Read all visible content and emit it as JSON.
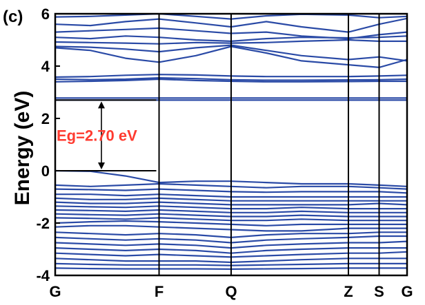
{
  "chart_data": {
    "type": "line",
    "panel_label": "(c)",
    "ylabel": "Energy (eV)",
    "ylim": [
      -4,
      6
    ],
    "yticks": [
      {
        "value": 6,
        "label": "6"
      },
      {
        "value": 4,
        "label": "4"
      },
      {
        "value": 2,
        "label": "2"
      },
      {
        "value": 0,
        "label": "0"
      },
      {
        "value": -2,
        "label": "-2"
      },
      {
        "value": -4,
        "label": "-4"
      }
    ],
    "kpoints": [
      {
        "label": "G",
        "x": 0
      },
      {
        "label": "F",
        "x": 0.2952
      },
      {
        "label": "Q",
        "x": 0.5
      },
      {
        "label": "Z",
        "x": 0.8333
      },
      {
        "label": "S",
        "x": 0.9206
      },
      {
        "label": "G",
        "x": 1
      }
    ],
    "band_gap": {
      "label": "Eg=2.70 eV",
      "vbm": 0,
      "cbm": 2.7
    },
    "colors": {
      "bands": "#2a4aa6",
      "axes": "#000000",
      "gap_label": "#ff3b30"
    },
    "series": [
      {
        "x": [
          0,
          0.1,
          0.2,
          0.2952,
          0.4,
          0.5,
          0.6,
          0.7,
          0.8333,
          0.9206,
          1
        ],
        "values": [
          5.88,
          5.9,
          5.95,
          6.0,
          5.9,
          5.8,
          5.92,
          5.98,
          5.95,
          5.85,
          5.9
        ]
      },
      {
        "x": [
          0,
          0.1,
          0.2,
          0.2952,
          0.4,
          0.5,
          0.6,
          0.7,
          0.8333,
          0.9206,
          1
        ],
        "values": [
          5.6,
          5.55,
          5.7,
          5.8,
          5.65,
          5.5,
          5.7,
          5.5,
          5.3,
          5.6,
          5.82
        ]
      },
      {
        "x": [
          0,
          0.1,
          0.2,
          0.2952,
          0.4,
          0.5,
          0.6,
          0.7,
          0.8333,
          0.9206,
          1
        ],
        "values": [
          5.3,
          5.35,
          5.4,
          5.45,
          5.35,
          5.25,
          5.3,
          5.15,
          5.05,
          5.2,
          5.3
        ]
      },
      {
        "x": [
          0,
          0.1,
          0.2,
          0.2952,
          0.4,
          0.5,
          0.6,
          0.7,
          0.8333,
          0.9206,
          1
        ],
        "values": [
          5.1,
          5.05,
          5.15,
          5.1,
          5.0,
          4.95,
          5.05,
          5.1,
          5.08,
          5.1,
          5.15
        ]
      },
      {
        "x": [
          0,
          0.1,
          0.2,
          0.2952,
          0.4,
          0.5,
          0.6,
          0.7,
          0.8333,
          0.9206,
          1
        ],
        "values": [
          4.92,
          4.9,
          4.88,
          4.85,
          4.9,
          4.88,
          4.9,
          4.95,
          5.0,
          4.95,
          4.95
        ]
      },
      {
        "x": [
          0,
          0.1,
          0.2,
          0.2952,
          0.4,
          0.5,
          0.6,
          0.7,
          0.8333,
          0.9206,
          1
        ],
        "values": [
          4.75,
          4.72,
          4.65,
          4.55,
          4.7,
          4.8,
          4.6,
          4.4,
          4.25,
          4.35,
          4.2
        ]
      },
      {
        "x": [
          0,
          0.1,
          0.2,
          0.2952,
          0.4,
          0.5,
          0.6,
          0.7,
          0.8333,
          0.9206,
          1
        ],
        "values": [
          4.7,
          4.6,
          4.3,
          4.15,
          4.4,
          4.75,
          4.5,
          4.2,
          4.05,
          3.95,
          4.25
        ]
      },
      {
        "x": [
          0,
          0.1,
          0.2,
          0.2952,
          0.4,
          0.5,
          0.6,
          0.7,
          0.8333,
          0.9206,
          1
        ],
        "values": [
          3.58,
          3.6,
          3.65,
          3.68,
          3.66,
          3.62,
          3.6,
          3.6,
          3.6,
          3.62,
          3.65
        ]
      },
      {
        "x": [
          0,
          0.1,
          0.2,
          0.2952,
          0.4,
          0.5,
          0.6,
          0.7,
          0.8333,
          0.9206,
          1
        ],
        "values": [
          3.5,
          3.48,
          3.5,
          3.55,
          3.52,
          3.48,
          3.46,
          3.46,
          3.47,
          3.48,
          3.5
        ]
      },
      {
        "x": [
          0,
          0.1,
          0.2,
          0.2952,
          0.4,
          0.5,
          0.6,
          0.7,
          0.8333,
          0.9206,
          1
        ],
        "values": [
          3.4,
          3.42,
          3.45,
          3.5,
          3.45,
          3.42,
          3.4,
          3.4,
          3.41,
          3.42,
          3.42
        ]
      },
      {
        "x": [
          0,
          0.2952,
          0.5,
          0.8333,
          0.9206,
          1
        ],
        "values": [
          2.78,
          2.78,
          2.78,
          2.78,
          2.78,
          2.78
        ]
      },
      {
        "x": [
          0,
          0.2952,
          0.5,
          0.8333,
          0.9206,
          1
        ],
        "values": [
          2.7,
          2.7,
          2.7,
          2.7,
          2.7,
          2.7
        ]
      },
      {
        "x": [
          0,
          0.1,
          0.2,
          0.2952,
          0.4,
          0.5,
          0.6,
          0.7,
          0.8333,
          0.9206,
          1
        ],
        "values": [
          0.0,
          -0.02,
          -0.2,
          -0.45,
          -0.4,
          -0.4,
          -0.45,
          -0.5,
          -0.5,
          -0.55,
          -0.6
        ]
      },
      {
        "x": [
          0,
          0.1,
          0.2,
          0.2952,
          0.4,
          0.5,
          0.6,
          0.7,
          0.8333,
          0.9206,
          1
        ],
        "values": [
          -0.55,
          -0.6,
          -0.55,
          -0.5,
          -0.55,
          -0.6,
          -0.65,
          -0.6,
          -0.6,
          -0.65,
          -0.7
        ]
      },
      {
        "x": [
          0,
          0.1,
          0.2,
          0.2952,
          0.4,
          0.5,
          0.6,
          0.7,
          0.8333,
          0.9206,
          1
        ],
        "values": [
          -0.7,
          -0.72,
          -0.75,
          -0.7,
          -0.75,
          -0.8,
          -0.82,
          -0.8,
          -0.8,
          -0.8,
          -0.85
        ]
      },
      {
        "x": [
          0,
          0.1,
          0.2,
          0.2952,
          0.4,
          0.5,
          0.6,
          0.7,
          0.8333,
          0.9206,
          1
        ],
        "values": [
          -0.9,
          -0.9,
          -0.95,
          -0.9,
          -0.95,
          -1.0,
          -1.0,
          -1.0,
          -1.0,
          -1.0,
          -1.0
        ]
      },
      {
        "x": [
          0,
          0.1,
          0.2,
          0.2952,
          0.4,
          0.5,
          0.6,
          0.7,
          0.8333,
          0.9206,
          1
        ],
        "values": [
          -1.05,
          -1.1,
          -1.1,
          -1.05,
          -1.1,
          -1.15,
          -1.15,
          -1.15,
          -1.15,
          -1.15,
          -1.15
        ]
      },
      {
        "x": [
          0,
          0.1,
          0.2,
          0.2952,
          0.4,
          0.5,
          0.6,
          0.7,
          0.8333,
          0.9206,
          1
        ],
        "values": [
          -1.2,
          -1.25,
          -1.25,
          -1.2,
          -1.25,
          -1.3,
          -1.3,
          -1.3,
          -1.3,
          -1.25,
          -1.3
        ]
      },
      {
        "x": [
          0,
          0.1,
          0.2,
          0.2952,
          0.4,
          0.5,
          0.6,
          0.7,
          0.8333,
          0.9206,
          1
        ],
        "values": [
          -1.35,
          -1.38,
          -1.4,
          -1.35,
          -1.4,
          -1.45,
          -1.45,
          -1.4,
          -1.45,
          -1.45,
          -1.45
        ]
      },
      {
        "x": [
          0,
          0.1,
          0.2,
          0.2952,
          0.4,
          0.5,
          0.6,
          0.7,
          0.8333,
          0.9206,
          1
        ],
        "values": [
          -1.5,
          -1.52,
          -1.55,
          -1.5,
          -1.55,
          -1.6,
          -1.6,
          -1.55,
          -1.6,
          -1.6,
          -1.6
        ]
      },
      {
        "x": [
          0,
          0.1,
          0.2,
          0.2952,
          0.4,
          0.5,
          0.6,
          0.7,
          0.8333,
          0.9206,
          1
        ],
        "values": [
          -1.65,
          -1.68,
          -1.7,
          -1.65,
          -1.7,
          -1.75,
          -1.75,
          -1.7,
          -1.75,
          -1.75,
          -1.75
        ]
      },
      {
        "x": [
          0,
          0.1,
          0.2,
          0.2952,
          0.4,
          0.5,
          0.6,
          0.7,
          0.8333,
          0.9206,
          1
        ],
        "values": [
          -1.8,
          -1.82,
          -1.85,
          -1.8,
          -1.85,
          -1.9,
          -1.9,
          -1.85,
          -1.9,
          -1.9,
          -1.9
        ]
      },
      {
        "x": [
          0,
          0.1,
          0.2,
          0.2952,
          0.4,
          0.5,
          0.6,
          0.7,
          0.8333,
          0.9206,
          1
        ],
        "values": [
          -2.0,
          -1.95,
          -1.92,
          -1.95,
          -2.0,
          -2.05,
          -2.1,
          -2.05,
          -2.05,
          -2.05,
          -2.05
        ]
      },
      {
        "x": [
          0,
          0.1,
          0.2,
          0.2952,
          0.4,
          0.5,
          0.6,
          0.7,
          0.8333,
          0.9206,
          1
        ],
        "values": [
          -2.15,
          -2.1,
          -2.1,
          -2.15,
          -2.2,
          -2.25,
          -2.3,
          -2.3,
          -2.2,
          -2.2,
          -2.2
        ]
      },
      {
        "x": [
          0,
          0.1,
          0.2,
          0.2952,
          0.4,
          0.5,
          0.6,
          0.7,
          0.8333,
          0.9206,
          1
        ],
        "values": [
          -2.35,
          -2.4,
          -2.45,
          -2.4,
          -2.45,
          -2.55,
          -2.45,
          -2.4,
          -2.4,
          -2.35,
          -2.35
        ]
      },
      {
        "x": [
          0,
          0.1,
          0.2,
          0.2952,
          0.4,
          0.5,
          0.6,
          0.7,
          0.8333,
          0.9206,
          1
        ],
        "values": [
          -2.55,
          -2.6,
          -2.65,
          -2.6,
          -2.65,
          -2.75,
          -2.65,
          -2.6,
          -2.55,
          -2.5,
          -2.5
        ]
      },
      {
        "x": [
          0,
          0.1,
          0.2,
          0.2952,
          0.4,
          0.5,
          0.6,
          0.7,
          0.8333,
          0.9206,
          1
        ],
        "values": [
          -2.75,
          -2.8,
          -2.85,
          -2.8,
          -2.85,
          -2.95,
          -2.85,
          -2.8,
          -2.75,
          -2.75,
          -2.7
        ]
      },
      {
        "x": [
          0,
          0.1,
          0.2,
          0.2952,
          0.4,
          0.5,
          0.6,
          0.7,
          0.8333,
          0.9206,
          1
        ],
        "values": [
          -2.95,
          -3.0,
          -3.05,
          -3.0,
          -3.05,
          -3.15,
          -3.05,
          -3.0,
          -2.95,
          -2.95,
          -2.95
        ]
      },
      {
        "x": [
          0,
          0.1,
          0.2,
          0.2952,
          0.4,
          0.5,
          0.6,
          0.7,
          0.8333,
          0.9206,
          1
        ],
        "values": [
          -3.15,
          -3.2,
          -3.25,
          -3.2,
          -3.25,
          -3.3,
          -3.25,
          -3.2,
          -3.15,
          -3.15,
          -3.1
        ]
      },
      {
        "x": [
          0,
          0.1,
          0.2,
          0.2952,
          0.4,
          0.5,
          0.6,
          0.7,
          0.8333,
          0.9206,
          1
        ],
        "values": [
          -3.35,
          -3.4,
          -3.45,
          -3.45,
          -3.45,
          -3.5,
          -3.45,
          -3.4,
          -3.35,
          -3.35,
          -3.35
        ]
      },
      {
        "x": [
          0,
          0.1,
          0.2,
          0.2952,
          0.4,
          0.5,
          0.6,
          0.7,
          0.8333,
          0.9206,
          1
        ],
        "values": [
          -3.55,
          -3.58,
          -3.6,
          -3.6,
          -3.6,
          -3.62,
          -3.6,
          -3.58,
          -3.55,
          -3.55,
          -3.55
        ]
      },
      {
        "x": [
          0,
          0.1,
          0.2,
          0.2952,
          0.4,
          0.5,
          0.6,
          0.7,
          0.8333,
          0.9206,
          1
        ],
        "values": [
          -3.72,
          -3.74,
          -3.75,
          -3.75,
          -3.75,
          -3.76,
          -3.75,
          -3.74,
          -3.72,
          -3.72,
          -3.72
        ]
      }
    ]
  }
}
